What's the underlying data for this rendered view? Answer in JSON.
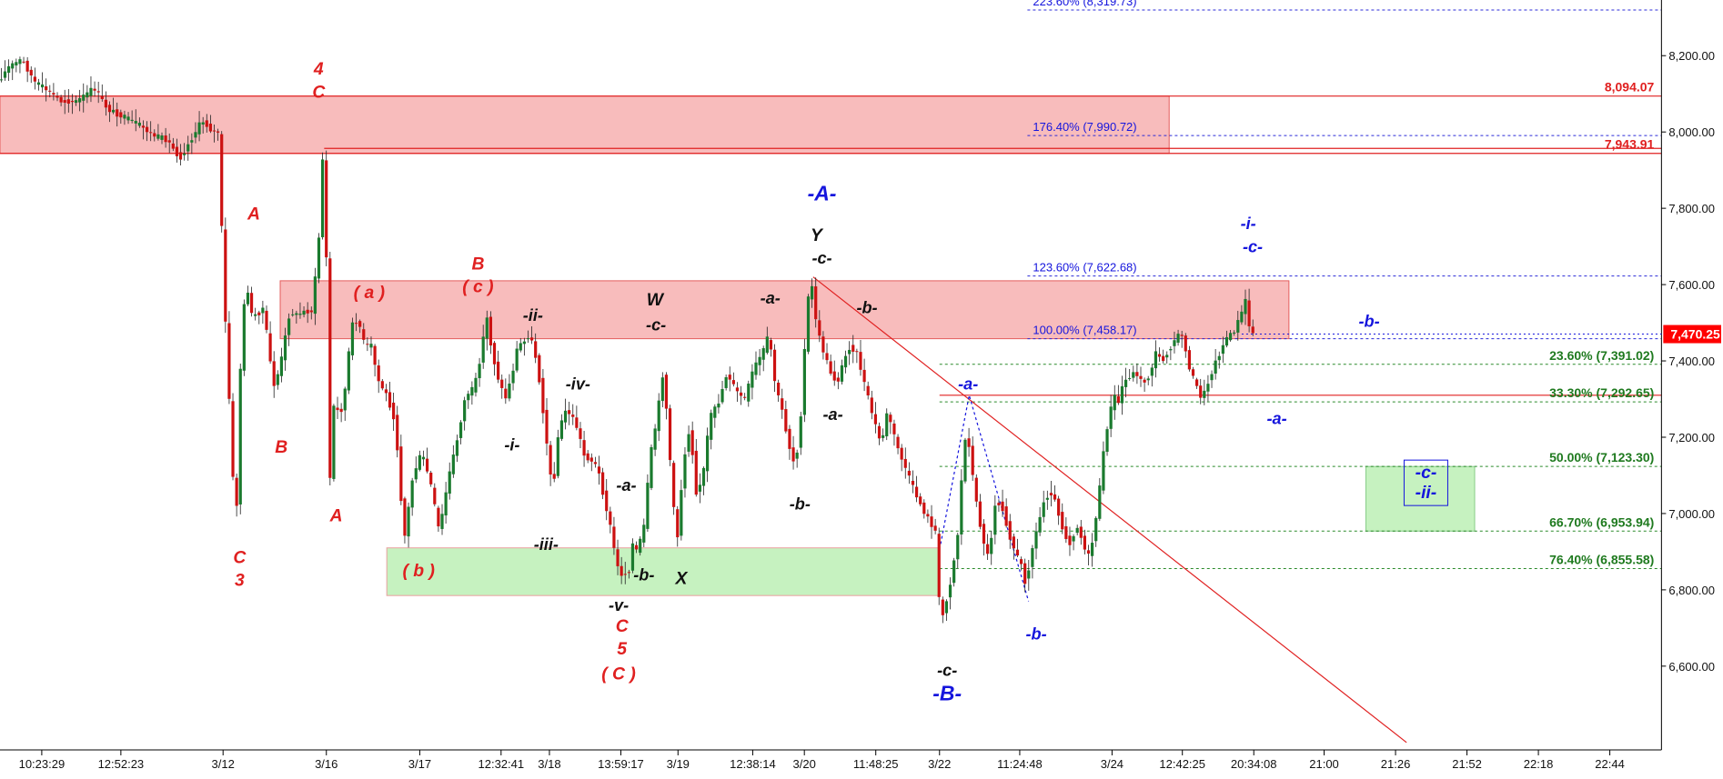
{
  "chart_data": {
    "type": "candlestick",
    "title": "",
    "ylim": [
      6400,
      8330
    ],
    "y_ticks": [
      6600,
      6800,
      7000,
      7200,
      7400,
      7600,
      7800,
      8000,
      8200
    ],
    "y_tick_labels": [
      "6,600.00",
      "6,800.00",
      "7,000.00",
      "7,200.00",
      "7,400.00",
      "7,600.00",
      "7,800.00",
      "8,000.00",
      "8,200.00"
    ],
    "x_ticks": [
      "10:23:29",
      "12:52:23",
      "3/12",
      "3/16",
      "3/17",
      "12:32:41",
      "3/18",
      "13:59:17",
      "3/19",
      "12:38:14",
      "3/20",
      "11:48:25",
      "3/22",
      "11:24:48",
      "3/24",
      "12:42:25",
      "20:34:08",
      "21:00",
      "21:26",
      "21:52",
      "22:18",
      "22:44"
    ],
    "grid": false,
    "last_price": {
      "value": 7470.25,
      "label": "7,470.25",
      "color": "#ff0000"
    },
    "candle_colors": {
      "up": "#1a7a2e",
      "down": "#cc1111"
    },
    "candle_anchors": [
      [
        0,
        8130
      ],
      [
        10,
        8170
      ],
      [
        22,
        8190
      ],
      [
        34,
        8130
      ],
      [
        45,
        8110
      ],
      [
        58,
        8080
      ],
      [
        72,
        8080
      ],
      [
        88,
        8115
      ],
      [
        100,
        8060
      ],
      [
        114,
        8040
      ],
      [
        128,
        8020
      ],
      [
        142,
        7990
      ],
      [
        154,
        7980
      ],
      [
        166,
        7930
      ],
      [
        176,
        7980
      ],
      [
        186,
        8030
      ],
      [
        196,
        8000
      ],
      [
        201,
        8000
      ],
      [
        206,
        7580
      ],
      [
        210,
        7350
      ],
      [
        214,
        7100
      ],
      [
        217,
        6960
      ],
      [
        221,
        7380
      ],
      [
        226,
        7620
      ],
      [
        231,
        7520
      ],
      [
        236,
        7520
      ],
      [
        242,
        7540
      ],
      [
        248,
        7400
      ],
      [
        252,
        7330
      ],
      [
        258,
        7400
      ],
      [
        266,
        7530
      ],
      [
        272,
        7520
      ],
      [
        280,
        7530
      ],
      [
        286,
        7530
      ],
      [
        292,
        7700
      ],
      [
        296,
        7940
      ],
      [
        298,
        7930
      ],
      [
        302,
        7060
      ],
      [
        306,
        7280
      ],
      [
        312,
        7260
      ],
      [
        316,
        7320
      ],
      [
        322,
        7490
      ],
      [
        328,
        7510
      ],
      [
        334,
        7440
      ],
      [
        340,
        7440
      ],
      [
        346,
        7350
      ],
      [
        354,
        7310
      ],
      [
        362,
        7240
      ],
      [
        370,
        6930
      ],
      [
        378,
        7100
      ],
      [
        386,
        7160
      ],
      [
        394,
        7080
      ],
      [
        402,
        6950
      ],
      [
        410,
        7090
      ],
      [
        418,
        7190
      ],
      [
        426,
        7310
      ],
      [
        434,
        7330
      ],
      [
        440,
        7420
      ],
      [
        445,
        7520
      ],
      [
        450,
        7420
      ],
      [
        456,
        7350
      ],
      [
        462,
        7300
      ],
      [
        468,
        7360
      ],
      [
        474,
        7450
      ],
      [
        478,
        7440
      ],
      [
        482,
        7470
      ],
      [
        488,
        7440
      ],
      [
        494,
        7330
      ],
      [
        500,
        7180
      ],
      [
        505,
        7050
      ],
      [
        510,
        7200
      ],
      [
        516,
        7270
      ],
      [
        522,
        7260
      ],
      [
        528,
        7220
      ],
      [
        534,
        7150
      ],
      [
        540,
        7140
      ],
      [
        546,
        7120
      ],
      [
        552,
        7040
      ],
      [
        558,
        6960
      ],
      [
        564,
        6860
      ],
      [
        568,
        6840
      ],
      [
        574,
        6840
      ],
      [
        578,
        6920
      ],
      [
        582,
        6900
      ],
      [
        588,
        6960
      ],
      [
        594,
        7150
      ],
      [
        600,
        7250
      ],
      [
        606,
        7380
      ],
      [
        612,
        7140
      ],
      [
        618,
        6910
      ],
      [
        624,
        7130
      ],
      [
        630,
        7230
      ],
      [
        636,
        7050
      ],
      [
        642,
        7100
      ],
      [
        648,
        7250
      ],
      [
        656,
        7290
      ],
      [
        664,
        7370
      ],
      [
        672,
        7320
      ],
      [
        680,
        7300
      ],
      [
        688,
        7380
      ],
      [
        696,
        7420
      ],
      [
        702,
        7470
      ],
      [
        708,
        7330
      ],
      [
        714,
        7270
      ],
      [
        720,
        7180
      ],
      [
        726,
        7120
      ],
      [
        732,
        7290
      ],
      [
        736,
        7520
      ],
      [
        740,
        7620
      ],
      [
        746,
        7480
      ],
      [
        752,
        7420
      ],
      [
        758,
        7370
      ],
      [
        764,
        7340
      ],
      [
        770,
        7400
      ],
      [
        776,
        7440
      ],
      [
        782,
        7420
      ],
      [
        788,
        7350
      ],
      [
        796,
        7260
      ],
      [
        804,
        7180
      ],
      [
        810,
        7270
      ],
      [
        818,
        7180
      ],
      [
        826,
        7120
      ],
      [
        834,
        7060
      ],
      [
        842,
        7010
      ],
      [
        848,
        6980
      ],
      [
        854,
        6950
      ],
      [
        858,
        6700
      ],
      [
        862,
        6760
      ],
      [
        866,
        6800
      ],
      [
        870,
        6870
      ],
      [
        874,
        6950
      ],
      [
        878,
        7120
      ],
      [
        882,
        7230
      ],
      [
        886,
        7130
      ],
      [
        890,
        7040
      ],
      [
        896,
        6940
      ],
      [
        902,
        6880
      ],
      [
        908,
        7030
      ],
      [
        914,
        7020
      ],
      [
        920,
        6950
      ],
      [
        926,
        6900
      ],
      [
        932,
        6860
      ],
      [
        936,
        6810
      ],
      [
        940,
        6890
      ],
      [
        946,
        6960
      ],
      [
        952,
        7030
      ],
      [
        958,
        7060
      ],
      [
        964,
        7020
      ],
      [
        970,
        6950
      ],
      [
        976,
        6920
      ],
      [
        982,
        6970
      ],
      [
        988,
        6920
      ],
      [
        994,
        6880
      ],
      [
        1000,
        7000
      ],
      [
        1004,
        7090
      ],
      [
        1008,
        7200
      ],
      [
        1012,
        7260
      ],
      [
        1016,
        7310
      ],
      [
        1020,
        7290
      ],
      [
        1024,
        7340
      ],
      [
        1030,
        7360
      ],
      [
        1036,
        7370
      ],
      [
        1042,
        7340
      ],
      [
        1048,
        7360
      ],
      [
        1054,
        7420
      ],
      [
        1060,
        7400
      ],
      [
        1066,
        7430
      ],
      [
        1072,
        7460
      ],
      [
        1078,
        7470
      ],
      [
        1082,
        7410
      ],
      [
        1086,
        7370
      ],
      [
        1090,
        7340
      ],
      [
        1096,
        7300
      ],
      [
        1100,
        7330
      ],
      [
        1106,
        7380
      ],
      [
        1112,
        7420
      ],
      [
        1118,
        7460
      ],
      [
        1124,
        7470
      ],
      [
        1130,
        7510
      ],
      [
        1136,
        7560
      ],
      [
        1140,
        7470
      ]
    ],
    "zones": [
      {
        "y1": 7943.91,
        "y2": 8094.07,
        "x1": 0,
        "x2": 1064,
        "color": "#f8bcbc",
        "border": "#e45c5c"
      },
      {
        "y1": 7458.17,
        "y2": 7610,
        "x1": 255,
        "x2": 1173,
        "color": "#f8bcbc",
        "border": "#e45c5c"
      },
      {
        "y1": 6785,
        "y2": 6910,
        "x1": 352,
        "x2": 855,
        "color": "#c6f2c0",
        "border": "#e9a0a0"
      },
      {
        "y1": 6953.94,
        "y2": 7123.3,
        "x1": 1243,
        "x2": 1342,
        "color": "#c6f2c0",
        "border": "#88cc88"
      }
    ],
    "solid_levels": [
      {
        "y": 8094.07,
        "x1": 0,
        "x2": 1512,
        "color": "#e02020",
        "label": "8,094.07"
      },
      {
        "y": 7943.91,
        "x1": 0,
        "x2": 1512,
        "color": "#e02020",
        "label": "7,943.91"
      },
      {
        "y": 7957,
        "x1": 295,
        "x2": 1512,
        "color": "#e02020",
        "label": ""
      },
      {
        "y": 7310,
        "x1": 855,
        "x2": 1512,
        "color": "#e02020",
        "label": ""
      }
    ],
    "fib_blue": [
      {
        "y": 8319.73,
        "label": "223.60% (8,319.73)"
      },
      {
        "y": 7990.72,
        "label": "176.40% (7,990.72)"
      },
      {
        "y": 7622.68,
        "label": "123.60% (7,622.68)"
      },
      {
        "y": 7458.17,
        "label": "100.00% (7,458.17)"
      }
    ],
    "fib_green": [
      {
        "y": 7391.02,
        "label": "23.60% (7,391.02)"
      },
      {
        "y": 7292.65,
        "label": "33.30% (7,292.65)"
      },
      {
        "y": 7123.3,
        "label": "50.00% (7,123.30)"
      },
      {
        "y": 6953.94,
        "label": "66.70% (6,953.94)"
      },
      {
        "y": 6855.58,
        "label": "76.40% (6,855.58)"
      }
    ],
    "trendline": {
      "from": [
        740,
        7620
      ],
      "to": [
        1280,
        6400
      ],
      "color": "#e02020"
    },
    "dotted_path": [
      [
        856,
        6920
      ],
      [
        882,
        7310
      ],
      [
        936,
        6770
      ]
    ],
    "annotations": [
      {
        "text": "4",
        "x": 290,
        "price": 8150,
        "color": "#e02020",
        "size": 16
      },
      {
        "text": "C",
        "x": 290,
        "price": 8090,
        "color": "#e02020",
        "size": 16
      },
      {
        "text": "A",
        "x": 231,
        "price": 7770,
        "color": "#e02020",
        "size": 16
      },
      {
        "text": "B",
        "x": 256,
        "price": 7160,
        "color": "#e02020",
        "size": 16
      },
      {
        "text": "A",
        "x": 306,
        "price": 6980,
        "color": "#e02020",
        "size": 16
      },
      {
        "text": "C",
        "x": 218,
        "price": 6870,
        "color": "#e02020",
        "size": 16
      },
      {
        "text": "3",
        "x": 218,
        "price": 6810,
        "color": "#e02020",
        "size": 16
      },
      {
        "text": "( a )",
        "x": 336,
        "price": 7565,
        "color": "#e02020",
        "size": 16
      },
      {
        "text": "B",
        "x": 435,
        "price": 7640,
        "color": "#e02020",
        "size": 16
      },
      {
        "text": "( c )",
        "x": 435,
        "price": 7580,
        "color": "#e02020",
        "size": 16
      },
      {
        "text": "( b )",
        "x": 381,
        "price": 6835,
        "color": "#e02020",
        "size": 16
      },
      {
        "text": "C",
        "x": 566,
        "price": 6690,
        "color": "#e02020",
        "size": 16
      },
      {
        "text": "5",
        "x": 566,
        "price": 6630,
        "color": "#e02020",
        "size": 16
      },
      {
        "text": "( C )",
        "x": 563,
        "price": 6565,
        "color": "#e02020",
        "size": 16
      },
      {
        "text": "-ii-",
        "x": 485,
        "price": 7505,
        "color": "#111111",
        "size": 15
      },
      {
        "text": "-i-",
        "x": 466,
        "price": 7165,
        "color": "#111111",
        "size": 15
      },
      {
        "text": "-iv-",
        "x": 526,
        "price": 7325,
        "color": "#111111",
        "size": 15
      },
      {
        "text": "-iii-",
        "x": 497,
        "price": 6905,
        "color": "#111111",
        "size": 15
      },
      {
        "text": "-a-",
        "x": 570,
        "price": 7060,
        "color": "#111111",
        "size": 15
      },
      {
        "text": "-b-",
        "x": 586,
        "price": 6825,
        "color": "#111111",
        "size": 15
      },
      {
        "text": "-v-",
        "x": 563,
        "price": 6745,
        "color": "#111111",
        "size": 15
      },
      {
        "text": "W",
        "x": 596,
        "price": 7545,
        "color": "#111111",
        "size": 16
      },
      {
        "text": "-c-",
        "x": 597,
        "price": 7480,
        "color": "#111111",
        "size": 15
      },
      {
        "text": "X",
        "x": 620,
        "price": 6815,
        "color": "#111111",
        "size": 16
      },
      {
        "text": "-a-",
        "x": 701,
        "price": 7550,
        "color": "#111111",
        "size": 15
      },
      {
        "text": "Y",
        "x": 743,
        "price": 7715,
        "color": "#111111",
        "size": 16
      },
      {
        "text": "-c-",
        "x": 748,
        "price": 7655,
        "color": "#111111",
        "size": 15
      },
      {
        "text": "-b-",
        "x": 789,
        "price": 7525,
        "color": "#111111",
        "size": 15
      },
      {
        "text": "-a-",
        "x": 758,
        "price": 7245,
        "color": "#111111",
        "size": 15
      },
      {
        "text": "-b-",
        "x": 728,
        "price": 7010,
        "color": "#111111",
        "size": 15
      },
      {
        "text": "-c-",
        "x": 862,
        "price": 6575,
        "color": "#111111",
        "size": 15
      },
      {
        "text": "-A-",
        "x": 748,
        "price": 7820,
        "color": "#1515dd",
        "size": 19
      },
      {
        "text": "-a-",
        "x": 881,
        "price": 7325,
        "color": "#1515dd",
        "size": 15
      },
      {
        "text": "-B-",
        "x": 862,
        "price": 6510,
        "color": "#1515dd",
        "size": 19
      },
      {
        "text": "-b-",
        "x": 943,
        "price": 6670,
        "color": "#1515dd",
        "size": 15
      },
      {
        "text": "-i-",
        "x": 1136,
        "price": 7745,
        "color": "#1515dd",
        "size": 15
      },
      {
        "text": "-c-",
        "x": 1140,
        "price": 7685,
        "color": "#1515dd",
        "size": 15
      },
      {
        "text": "-b-",
        "x": 1246,
        "price": 7490,
        "color": "#1515dd",
        "size": 15
      },
      {
        "text": "-a-",
        "x": 1162,
        "price": 7235,
        "color": "#1515dd",
        "size": 15
      }
    ],
    "boxed_label": {
      "lines": [
        "-c-",
        "-ii-"
      ],
      "x": 1296,
      "price": 7040,
      "color": "#1515dd"
    }
  }
}
